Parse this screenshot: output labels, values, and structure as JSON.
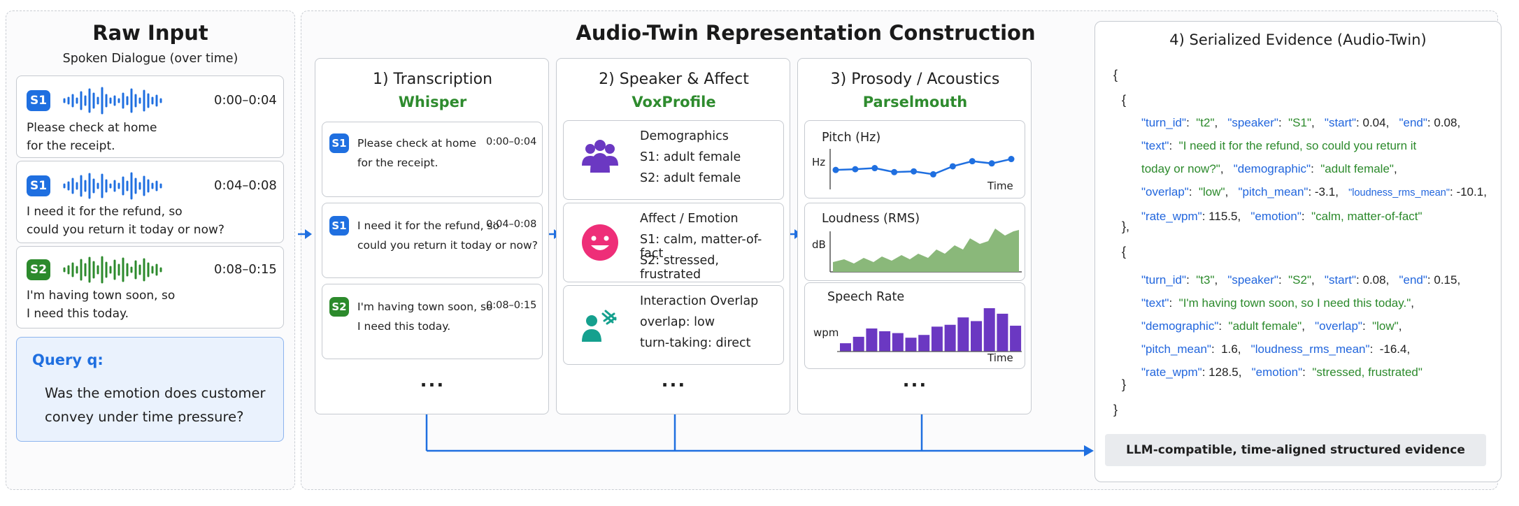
{
  "raw_input": {
    "title": "Raw Input",
    "subtitle": "Spoken Dialogue (over time)",
    "turns": [
      {
        "speaker": "S1",
        "time": "0:00–0:04",
        "line1": "Please check at home",
        "line2": "for the receipt."
      },
      {
        "speaker": "S1",
        "time": "0:04–0:08",
        "line1": "I need it for the refund, so",
        "line2": "could you return it today or now?"
      },
      {
        "speaker": "S2",
        "time": "0:08–0:15",
        "line1": "I'm having town soon, so",
        "line2": "I need this today."
      }
    ],
    "query": {
      "label": "Query q:",
      "line1": "Was the emotion does customer",
      "line2": "convey under time pressure?"
    }
  },
  "construction": {
    "title": "Audio-Twin Representation Construction",
    "transcription": {
      "title": "1) Transcription",
      "tool": "Whisper",
      "turns": [
        {
          "speaker": "S1",
          "time": "0:00–0:04",
          "line1": "Please check at home",
          "line2": "for the receipt."
        },
        {
          "speaker": "S1",
          "time": "0:04–0:08",
          "line1": "I need it for the refund, so",
          "line2": "could you return it today or now?"
        },
        {
          "speaker": "S2",
          "time": "0:08–0:15",
          "line1": "I'm having town soon, so",
          "line2": "I need this today."
        }
      ],
      "more": "..."
    },
    "speaker_affect": {
      "title": "2) Speaker & Affect",
      "tool": "VoxProfile",
      "cards": [
        {
          "title": "Demographics",
          "line1": "S1:  adult female",
          "line2": "S2:  adult female"
        },
        {
          "title": "Affect / Emotion",
          "line1": "S1:  calm, matter-of-fact",
          "line2": "S2:  stressed, frustrated"
        },
        {
          "title": "Interaction Overlap",
          "line1": "overlap:  low",
          "line2": "turn-taking:  direct"
        }
      ],
      "more": "..."
    },
    "prosody": {
      "title": "3) Prosody / Acoustics",
      "tool": "Parselmouth",
      "pitch": {
        "title": "Pitch (Hz)",
        "ylabel": "Hz",
        "xlabel": "Time",
        "values": [
          0.42,
          0.44,
          0.47,
          0.36,
          0.38,
          0.3,
          0.52,
          0.66,
          0.6,
          0.72
        ]
      },
      "loudness": {
        "title": "Loudness (RMS)",
        "ylabel": "dB",
        "xlabel": "Time"
      },
      "rate": {
        "title": "Speech Rate",
        "ylabel": "wpm",
        "xlabel": "Time",
        "values": [
          0.18,
          0.32,
          0.5,
          0.44,
          0.4,
          0.3,
          0.36,
          0.54,
          0.58,
          0.74,
          0.66,
          0.94,
          0.82,
          0.56
        ]
      },
      "more": "..."
    }
  },
  "serialized": {
    "title": "4) Serialized Evidence (Audio-Twin)",
    "footer": "LLM-compatible, time-aligned structured evidence",
    "brace_open": "{",
    "brace_close": "}",
    "obj_open": "{",
    "obj_close_comma": "},",
    "obj_close": "}",
    "json_lines_t2": [
      [
        {
          "t": "\"turn_id\"",
          "c": "k"
        },
        {
          "t": ":  ",
          "c": "n"
        },
        {
          "t": "\"t2\"",
          "c": "v"
        },
        {
          "t": ",   ",
          "c": "n"
        },
        {
          "t": "\"speaker\"",
          "c": "k"
        },
        {
          "t": ":  ",
          "c": "n"
        },
        {
          "t": "\"S1\"",
          "c": "v"
        },
        {
          "t": ",   ",
          "c": "n"
        },
        {
          "t": "\"start\"",
          "c": "k"
        },
        {
          "t": ": 0.04,   ",
          "c": "n"
        },
        {
          "t": "\"end\"",
          "c": "k"
        },
        {
          "t": ": 0.08,",
          "c": "n"
        }
      ],
      [
        {
          "t": "\"text\"",
          "c": "k"
        },
        {
          "t": ":  ",
          "c": "n"
        },
        {
          "t": "\"I need it for the refund, so could you return it",
          "c": "v"
        }
      ],
      [
        {
          "t": "today or now?\"",
          "c": "v"
        },
        {
          "t": ",   ",
          "c": "n"
        },
        {
          "t": "\"demographic\"",
          "c": "k"
        },
        {
          "t": ":  ",
          "c": "n"
        },
        {
          "t": "\"adult female\"",
          "c": "v"
        },
        {
          "t": ",",
          "c": "n"
        }
      ],
      [
        {
          "t": "\"overlap\"",
          "c": "k"
        },
        {
          "t": ":  ",
          "c": "n"
        },
        {
          "t": "\"low\"",
          "c": "v"
        },
        {
          "t": ",   ",
          "c": "n"
        },
        {
          "t": "\"pitch_mean\"",
          "c": "k"
        },
        {
          "t": ": -3.1,   ",
          "c": "n"
        },
        {
          "t": "\"loudness_rms_mean\"",
          "c": "sk"
        },
        {
          "t": ": -10.1,",
          "c": "n"
        }
      ],
      [
        {
          "t": "\"rate_wpm\"",
          "c": "k"
        },
        {
          "t": ": 115.5,   ",
          "c": "n"
        },
        {
          "t": "\"emotion\"",
          "c": "k"
        },
        {
          "t": ":  ",
          "c": "n"
        },
        {
          "t": "\"calm, matter-of-fact\"",
          "c": "v"
        }
      ]
    ],
    "json_lines_t3": [
      [
        {
          "t": "\"turn_id\"",
          "c": "k"
        },
        {
          "t": ":  ",
          "c": "n"
        },
        {
          "t": "\"t3\"",
          "c": "v"
        },
        {
          "t": ",   ",
          "c": "n"
        },
        {
          "t": "\"speaker\"",
          "c": "k"
        },
        {
          "t": ":  ",
          "c": "n"
        },
        {
          "t": "\"S2\"",
          "c": "v"
        },
        {
          "t": ",   ",
          "c": "n"
        },
        {
          "t": "\"start\"",
          "c": "k"
        },
        {
          "t": ": 0.08,   ",
          "c": "n"
        },
        {
          "t": "\"end\"",
          "c": "k"
        },
        {
          "t": ": 0.15,",
          "c": "n"
        }
      ],
      [
        {
          "t": "\"text\"",
          "c": "k"
        },
        {
          "t": ":  ",
          "c": "n"
        },
        {
          "t": "\"I'm having town soon, so I need this today.\"",
          "c": "v"
        },
        {
          "t": ",",
          "c": "n"
        }
      ],
      [
        {
          "t": "\"demographic\"",
          "c": "k"
        },
        {
          "t": ":  ",
          "c": "n"
        },
        {
          "t": "\"adult female\"",
          "c": "v"
        },
        {
          "t": ",   ",
          "c": "n"
        },
        {
          "t": "\"overlap\"",
          "c": "k"
        },
        {
          "t": ":  ",
          "c": "n"
        },
        {
          "t": "\"low\"",
          "c": "v"
        },
        {
          "t": ",",
          "c": "n"
        }
      ],
      [
        {
          "t": "\"pitch_mean\"",
          "c": "k"
        },
        {
          "t": ":  1.6,   ",
          "c": "n"
        },
        {
          "t": "\"loudness_rms_mean\"",
          "c": "k"
        },
        {
          "t": ":  -16.4,",
          "c": "n"
        }
      ],
      [
        {
          "t": "\"rate_wpm\"",
          "c": "k"
        },
        {
          "t": ": 128.5,   ",
          "c": "n"
        },
        {
          "t": "\"emotion\"",
          "c": "k"
        },
        {
          "t": ":  ",
          "c": "n"
        },
        {
          "t": "\"stressed, frustrated\"",
          "c": "v"
        }
      ]
    ]
  },
  "colors": {
    "s1": "#1f6fe0",
    "s2": "#2c8a2c",
    "arrow": "#1f6fe0",
    "violet": "#6b38c2",
    "green_area": "#8ab87a",
    "pink": "#ee2e78",
    "teal": "#15a08e"
  }
}
